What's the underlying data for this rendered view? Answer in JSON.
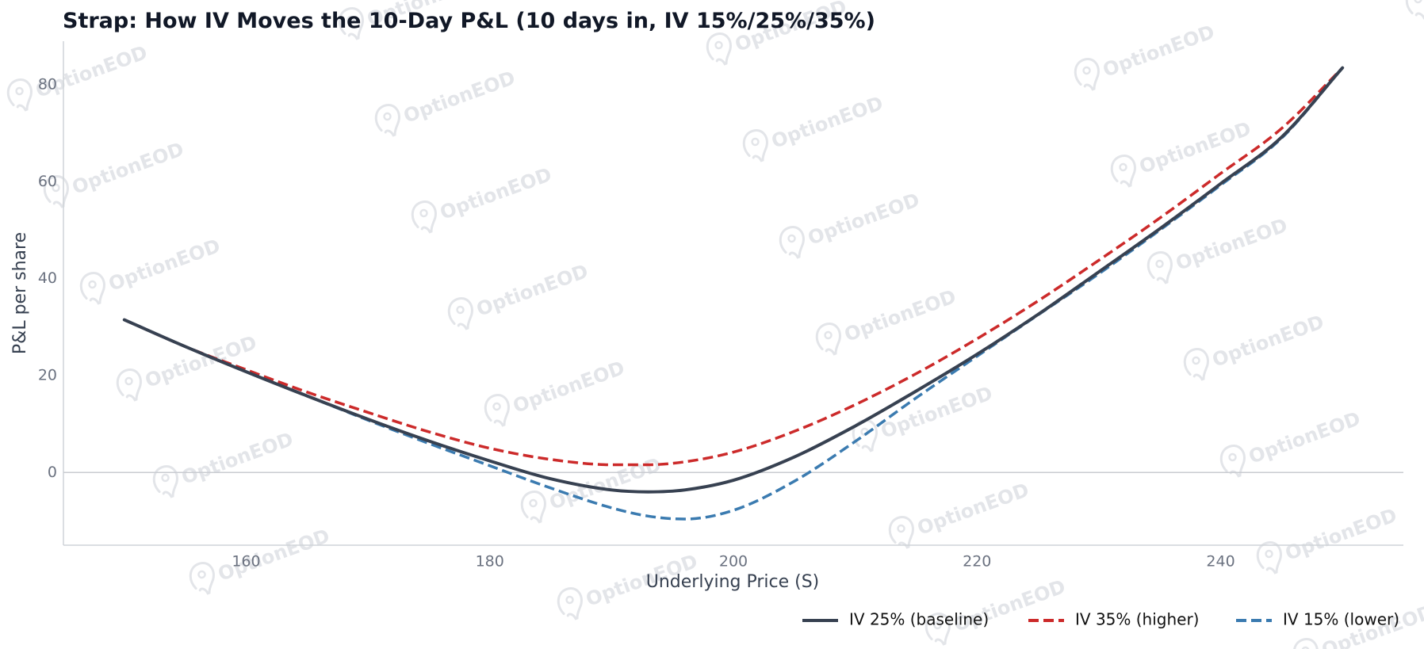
{
  "watermark": {
    "text": "OptionEOD",
    "icon": "optioneod-logo-icon"
  },
  "chart_data": {
    "type": "line",
    "title": "Strap: How IV Moves the 10-Day P&L (10 days in, IV 15%/25%/35%)",
    "xlabel": "Underlying Price (S)",
    "ylabel": "P&L per share",
    "xlim": [
      145,
      255
    ],
    "ylim": [
      -15,
      89
    ],
    "xticks": [
      160,
      180,
      200,
      220,
      240
    ],
    "yticks": [
      0,
      20,
      40,
      60,
      80
    ],
    "grid": false,
    "zero_line": true,
    "legend_position": "bottom-right",
    "x": [
      150,
      155,
      160,
      165,
      170,
      175,
      180,
      185,
      190,
      193,
      196,
      200,
      205,
      210,
      215,
      220,
      225,
      230,
      235,
      240,
      245,
      250
    ],
    "series": [
      {
        "name": "IV 25% (baseline)",
        "color": "#374151",
        "style": "solid",
        "values": [
          31.5,
          26.0,
          20.8,
          15.8,
          11.0,
          6.5,
          2.4,
          -1.3,
          -3.6,
          -4.0,
          -3.6,
          -1.6,
          3.2,
          9.6,
          16.8,
          24.4,
          32.6,
          41.4,
          50.3,
          59.6,
          69.2,
          83.5
        ]
      },
      {
        "name": "IV 35% (higher)",
        "color": "#cc2a2a",
        "style": "dashed",
        "values": [
          31.5,
          26.0,
          21.2,
          16.6,
          12.4,
          8.4,
          5.0,
          2.7,
          1.6,
          1.6,
          2.2,
          4.2,
          8.5,
          14.0,
          20.4,
          27.6,
          35.4,
          43.8,
          52.5,
          61.7,
          71.0,
          83.5
        ]
      },
      {
        "name": "IV 15% (lower)",
        "color": "#3b7bb0",
        "style": "dashed",
        "values": [
          31.5,
          26.0,
          20.8,
          15.8,
          10.8,
          6.0,
          1.4,
          -3.2,
          -7.3,
          -9.0,
          -9.6,
          -7.8,
          -1.8,
          6.4,
          15.4,
          24.0,
          32.5,
          41.0,
          50.0,
          59.3,
          69.0,
          83.5
        ]
      }
    ]
  }
}
